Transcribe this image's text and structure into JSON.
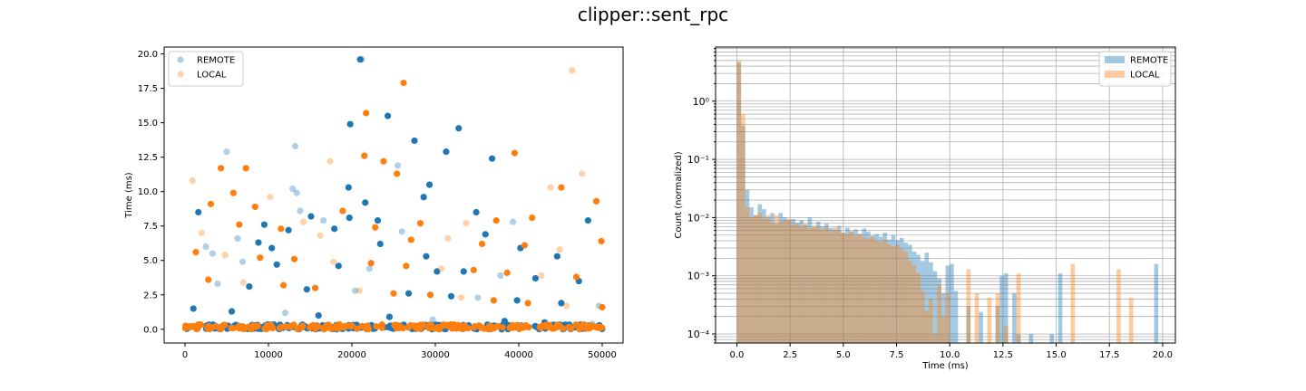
{
  "figure": {
    "title": "clipper::sent_rpc"
  },
  "colors": {
    "remote": "#1f77b4",
    "local": "#ff7f0e",
    "grid": "#b0b0b0",
    "axis": "#000000"
  },
  "chart_data": [
    {
      "type": "scatter",
      "xlabel": "",
      "ylabel": "Time (ms)",
      "xlim": [
        -2500,
        52500
      ],
      "ylim": [
        -1.0,
        20.5
      ],
      "xticks": [
        0,
        10000,
        20000,
        30000,
        40000,
        50000
      ],
      "yticks": [
        0.0,
        2.5,
        5.0,
        7.5,
        10.0,
        12.5,
        15.0,
        17.5,
        20.0
      ],
      "grid": false,
      "legend": {
        "placement": "top-left",
        "entries": [
          "REMOTE",
          "LOCAL"
        ]
      },
      "series": [
        {
          "name": "REMOTE",
          "color": "#1f77b4",
          "x": [
            21000,
            21200,
            24300,
            32800,
            13200,
            19800,
            27500,
            5000,
            36800,
            29300,
            25500,
            31300,
            19600,
            12900,
            28600,
            21600,
            13400,
            19700,
            1600,
            13800,
            34900,
            15100,
            16600,
            23100,
            48300,
            39300,
            9500,
            17900,
            26000,
            12400,
            36000,
            6300,
            8800,
            23400,
            2500,
            10400,
            40200,
            3300,
            28900,
            44600,
            6900,
            11000,
            18400,
            22100,
            30200,
            33400,
            37800,
            42000,
            47200,
            3900,
            7700,
            14600,
            20400,
            26800,
            31900,
            35100,
            39800,
            45100,
            49600,
            1000,
            5600,
            12000,
            16000,
            24500,
            29700,
            38300,
            43100,
            48800
          ],
          "y": [
            19.6,
            19.6,
            15.5,
            14.6,
            13.3,
            14.9,
            13.7,
            12.9,
            12.4,
            10.5,
            11.9,
            12.9,
            10.3,
            10.2,
            9.6,
            9.2,
            9.9,
            8.1,
            8.5,
            8.6,
            8.5,
            8.2,
            7.9,
            7.9,
            7.9,
            7.8,
            7.6,
            7.3,
            7.1,
            7.2,
            6.9,
            6.6,
            6.3,
            6.2,
            6.0,
            5.9,
            5.9,
            5.5,
            5.3,
            5.3,
            4.9,
            4.7,
            4.6,
            4.4,
            4.2,
            4.2,
            3.9,
            3.7,
            3.5,
            3.3,
            3.1,
            2.9,
            2.8,
            2.6,
            2.4,
            2.3,
            2.1,
            1.9,
            1.7,
            1.5,
            1.3,
            1.2,
            1.0,
            0.9,
            0.7,
            0.6,
            0.5,
            0.4
          ]
        },
        {
          "name": "LOCAL",
          "color": "#ff7f0e",
          "x": [
            26200,
            46400,
            21700,
            39500,
            47600,
            4300,
            7300,
            17400,
            23800,
            21500,
            900,
            25400,
            5800,
            10200,
            49300,
            45100,
            43800,
            3100,
            8400,
            14200,
            18900,
            28200,
            33700,
            37300,
            41600,
            2000,
            6500,
            11500,
            16200,
            22800,
            27100,
            31500,
            35600,
            40700,
            44900,
            49900,
            1300,
            4800,
            9000,
            13100,
            17800,
            22300,
            26500,
            30700,
            34600,
            38600,
            42700,
            46900,
            2800,
            7000,
            11800,
            15600,
            20900,
            25000,
            29400,
            33100,
            37000,
            41100,
            45700,
            50000
          ],
          "y": [
            17.9,
            18.8,
            15.7,
            12.8,
            11.3,
            11.7,
            11.7,
            12.2,
            12.2,
            12.6,
            10.8,
            11.3,
            9.9,
            9.6,
            9.3,
            10.3,
            10.3,
            9.1,
            8.9,
            7.8,
            8.6,
            7.7,
            7.7,
            7.9,
            8.1,
            7.0,
            7.6,
            7.3,
            6.8,
            7.4,
            6.5,
            6.6,
            6.2,
            6.1,
            5.8,
            6.4,
            5.6,
            5.4,
            5.2,
            5.1,
            4.9,
            4.8,
            4.6,
            4.4,
            4.3,
            4.1,
            3.9,
            3.8,
            3.6,
            3.4,
            3.2,
            3.0,
            2.8,
            2.6,
            2.5,
            2.3,
            2.1,
            1.9,
            1.7,
            1.6
          ]
        }
      ]
    },
    {
      "type": "bar",
      "subtype": "histogram",
      "xlabel": "Time (ms)",
      "ylabel": "Count (normalized)",
      "xlim": [
        -1.0,
        20.6
      ],
      "ylim": [
        7e-05,
        8.5
      ],
      "yscale": "log",
      "xticks": [
        0.0,
        2.5,
        5.0,
        7.5,
        10.0,
        12.5,
        15.0,
        17.5,
        20.0
      ],
      "yticks": [
        0.0001,
        0.001,
        0.01,
        0.1,
        1
      ],
      "ytick_labels": [
        "10⁻⁴",
        "10⁻³",
        "10⁻²",
        "10⁻¹",
        "10⁰"
      ],
      "grid": true,
      "legend": {
        "placement": "top-right",
        "entries": [
          "REMOTE",
          "LOCAL"
        ]
      },
      "bin_width": 0.196,
      "series": [
        {
          "name": "REMOTE",
          "color": "#1f77b4",
          "x": [
            0.0,
            0.196,
            0.392,
            0.588,
            0.784,
            0.98,
            1.176,
            1.372,
            1.568,
            1.764,
            1.96,
            2.156,
            2.352,
            2.548,
            2.744,
            2.94,
            3.136,
            3.332,
            3.528,
            3.724,
            3.92,
            4.116,
            4.312,
            4.508,
            4.704,
            4.9,
            5.096,
            5.292,
            5.488,
            5.684,
            5.88,
            6.076,
            6.272,
            6.468,
            6.664,
            6.86,
            7.056,
            7.252,
            7.448,
            7.644,
            7.84,
            8.036,
            8.232,
            8.428,
            8.624,
            8.82,
            9.016,
            9.212,
            9.408,
            9.604,
            9.8,
            9.996,
            10.192,
            10.78,
            11.368,
            12.152,
            12.348,
            12.544,
            12.936,
            13.132,
            13.72,
            14.7,
            15.092,
            19.6
          ],
          "values": [
            4.6,
            0.38,
            0.03,
            0.015,
            0.011,
            0.017,
            0.014,
            0.01,
            0.012,
            0.008,
            0.012,
            0.01,
            0.009,
            0.0095,
            0.008,
            0.009,
            0.0075,
            0.01,
            0.0068,
            0.0085,
            0.007,
            0.0078,
            0.0066,
            0.0062,
            0.0072,
            0.0055,
            0.0067,
            0.0058,
            0.0063,
            0.0052,
            0.0065,
            0.0057,
            0.0049,
            0.0052,
            0.0047,
            0.0055,
            0.0042,
            0.005,
            0.0041,
            0.0045,
            0.0037,
            0.0034,
            0.0026,
            0.0023,
            0.0018,
            0.0025,
            0.0017,
            0.0012,
            0.0009,
            0.0005,
            0.0015,
            0.0016,
            0.00055,
            0.0003,
            0.00024,
            0.0003,
            0.001,
            0.0011,
            0.0005,
            0.0001,
            0.0001,
            0.0001,
            0.0011,
            0.0016
          ]
        },
        {
          "name": "LOCAL",
          "color": "#ff7f0e",
          "x": [
            0.0,
            0.196,
            0.392,
            0.588,
            0.784,
            0.98,
            1.176,
            1.372,
            1.568,
            1.764,
            1.96,
            2.156,
            2.352,
            2.548,
            2.744,
            2.94,
            3.136,
            3.332,
            3.528,
            3.724,
            3.92,
            4.116,
            4.312,
            4.508,
            4.704,
            4.9,
            5.096,
            5.292,
            5.488,
            5.684,
            5.88,
            6.076,
            6.272,
            6.468,
            6.664,
            6.86,
            7.056,
            7.252,
            7.448,
            7.644,
            7.84,
            8.036,
            8.232,
            8.428,
            8.624,
            8.82,
            9.016,
            9.212,
            9.408,
            9.604,
            9.8,
            10.78,
            11.172,
            11.76,
            12.152,
            12.544,
            13.132,
            15.68,
            17.836,
            18.424
          ],
          "values": [
            5.0,
            0.6,
            0.015,
            0.01,
            0.011,
            0.012,
            0.0095,
            0.011,
            0.008,
            0.011,
            0.0085,
            0.009,
            0.0095,
            0.0075,
            0.0082,
            0.007,
            0.0078,
            0.0065,
            0.0073,
            0.007,
            0.0062,
            0.0067,
            0.0058,
            0.0068,
            0.006,
            0.0055,
            0.0052,
            0.0058,
            0.0048,
            0.0053,
            0.0046,
            0.0044,
            0.0047,
            0.0041,
            0.0038,
            0.0042,
            0.0035,
            0.0032,
            0.0034,
            0.0029,
            0.0026,
            0.0018,
            0.0015,
            0.0011,
            0.00055,
            0.00025,
            0.0004,
            0.0001,
            0.0007,
            0.0002,
            0.0005,
            0.0013,
            0.0005,
            0.00042,
            0.0005,
            0.00014,
            0.0011,
            0.0016,
            0.0013,
            0.00042
          ]
        }
      ]
    }
  ]
}
